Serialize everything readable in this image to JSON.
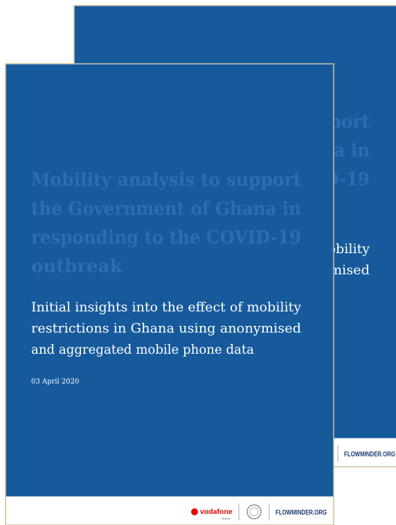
{
  "cover": {
    "title_lines": [
      "Mobility analysis to support",
      "the Government of Ghana in",
      "responding to the COVID-19",
      "outbreak"
    ],
    "subtitle_lines": [
      "Initial insights into the effect of mobility",
      "restrictions in Ghana using anonymised",
      "and aggregated mobile phone data"
    ],
    "date": "03 April 2020",
    "logos": {
      "vodafone": "vodafone",
      "vodafone_sub": "Ghana",
      "flowminder": "FLOWMINDER.ORG"
    }
  }
}
